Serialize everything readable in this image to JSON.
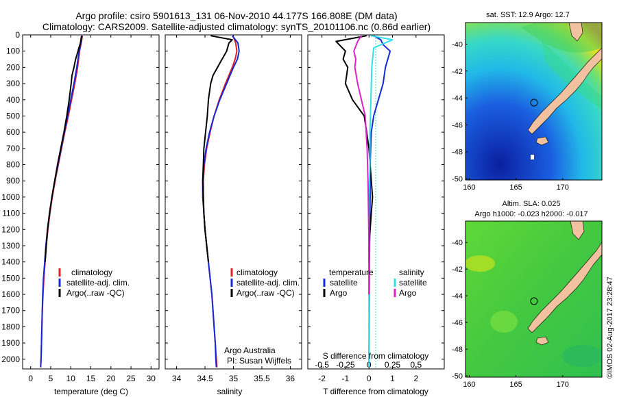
{
  "header": {
    "title_line1": "Argo profile: csiro 5901613_131 06-Nov-2010 44.177S 166.808E (DM data)",
    "title_line2": "Climatology: CARS2009. Satellite-adjusted climatology: synTS_20101106.nc (0.86d earlier)"
  },
  "credits": {
    "org": "Argo Australia",
    "pi": "PI: Susan Wijffels",
    "imos": "©IMOS 02-Aug-2017 23:28:47"
  },
  "colors": {
    "climatology": "#e02020",
    "satellite": "#1428d8",
    "argo": "#000000",
    "satellite_salinity": "#30e0e8",
    "argo_salinity": "#e020c8",
    "land": "#f2c2a0"
  },
  "chart_data": [
    {
      "type": "line",
      "xlabel": "temperature (deg C)",
      "ylabel": "",
      "xlim": [
        -2,
        32
      ],
      "ylim": [
        2060,
        0
      ],
      "xticks": [
        0,
        5,
        10,
        15,
        20,
        25,
        30
      ],
      "yticks": [
        0,
        100,
        200,
        300,
        400,
        500,
        600,
        700,
        800,
        900,
        1000,
        1100,
        1200,
        1300,
        1400,
        1500,
        1600,
        1700,
        1800,
        1900,
        2000
      ],
      "legend": [
        "climatology",
        "satellite-adj. clim.",
        "Argo(..raw -QC)"
      ],
      "legend_placement": "lower-middle",
      "series": [
        {
          "name": "climatology",
          "depth": [
            5,
            50,
            100,
            200,
            300,
            400,
            500,
            600,
            700,
            800,
            900,
            1000,
            1100,
            1200,
            1300,
            1400,
            1500,
            1600,
            1700,
            1800,
            1900,
            2000,
            2050
          ],
          "values": [
            12.9,
            12.6,
            12.2,
            11.7,
            11.0,
            10.2,
            9.4,
            8.5,
            7.7,
            6.9,
            6.1,
            5.4,
            4.8,
            4.3,
            3.9,
            3.6,
            3.3,
            3.1,
            2.9,
            2.8,
            2.7,
            2.6,
            2.5
          ]
        },
        {
          "name": "satellite-adj. clim.",
          "depth": [
            5,
            50,
            100,
            200,
            300,
            400,
            500,
            600,
            700,
            800,
            900,
            1000,
            1100,
            1200,
            1300,
            1400,
            1500,
            1600,
            1700,
            1800,
            1900,
            2000,
            2050
          ],
          "values": [
            12.8,
            12.5,
            12.1,
            11.5,
            10.8,
            10.0,
            9.2,
            8.4,
            7.6,
            6.8,
            6.0,
            5.3,
            4.7,
            4.2,
            3.8,
            3.5,
            3.2,
            3.0,
            2.9,
            2.8,
            2.7,
            2.6,
            2.5
          ]
        },
        {
          "name": "Argo(..raw -QC)",
          "depth": [
            5,
            50,
            100,
            150,
            200,
            250,
            300,
            400,
            500,
            600,
            700,
            800,
            900,
            1000,
            1100,
            1200,
            1300,
            1400
          ],
          "values": [
            12.7,
            12.4,
            11.8,
            11.2,
            10.8,
            10.3,
            10.1,
            9.6,
            9.0,
            8.3,
            7.5,
            6.7,
            6.0,
            5.3,
            4.7,
            4.2,
            3.9,
            3.6
          ]
        }
      ]
    },
    {
      "type": "line",
      "xlabel": "salinity",
      "ylabel": "",
      "xlim": [
        33.8,
        36.2
      ],
      "ylim": [
        2060,
        0
      ],
      "xticks": [
        34,
        34.5,
        35,
        35.5,
        36
      ],
      "xticklabels": [
        "34",
        "34.5",
        "35",
        "35.5",
        "36"
      ],
      "legend": [
        "climatology",
        "satellite-adj. clim.",
        "Argo(..raw -QC)"
      ],
      "legend_placement": "lower-middle",
      "series": [
        {
          "name": "climatology",
          "depth": [
            5,
            50,
            100,
            150,
            200,
            300,
            400,
            500,
            600,
            700,
            800,
            900,
            1000,
            1100,
            1200,
            1300,
            1400,
            1500,
            1600,
            1700,
            1800,
            1900,
            2000,
            2050
          ],
          "values": [
            34.99,
            35.04,
            35.06,
            35.03,
            34.98,
            34.86,
            34.75,
            34.66,
            34.59,
            34.53,
            34.49,
            34.47,
            34.47,
            34.48,
            34.5,
            34.53,
            34.56,
            34.59,
            34.62,
            34.64,
            34.66,
            34.68,
            34.7,
            34.71
          ]
        },
        {
          "name": "satellite-adj. clim.",
          "depth": [
            5,
            50,
            100,
            150,
            200,
            300,
            400,
            500,
            600,
            700,
            800,
            900,
            1000,
            1100,
            1200,
            1300,
            1400,
            1500,
            1600,
            1700,
            1800,
            1900,
            2000,
            2050
          ],
          "values": [
            34.98,
            35.08,
            35.1,
            35.07,
            35.0,
            34.88,
            34.76,
            34.66,
            34.58,
            34.52,
            34.48,
            34.46,
            34.46,
            34.48,
            34.5,
            34.53,
            34.56,
            34.59,
            34.62,
            34.64,
            34.66,
            34.68,
            34.69,
            34.7
          ]
        },
        {
          "name": "Argo(..raw -QC)",
          "depth": [
            5,
            30,
            50,
            100,
            150,
            200,
            250,
            300,
            400,
            500,
            600,
            700,
            800,
            900,
            1000,
            1100,
            1200,
            1300,
            1400
          ],
          "values": [
            34.6,
            34.98,
            34.92,
            34.88,
            34.8,
            34.72,
            34.64,
            34.6,
            34.56,
            34.54,
            34.51,
            34.48,
            34.47,
            34.46,
            34.47,
            34.48,
            34.5,
            34.53,
            34.56
          ]
        }
      ]
    },
    {
      "type": "line",
      "xlabel": "T difference from climatology",
      "x2label": "S difference from climatology",
      "ylabel": "",
      "xlim": [
        -2.6,
        3.2
      ],
      "ylim": [
        2060,
        0
      ],
      "xticks": [
        -2,
        -1,
        0,
        1,
        2
      ],
      "x2ticks": [
        -0.5,
        -0.25,
        0,
        0.25,
        0.5
      ],
      "x2ticklabels": [
        "-0.5",
        "-0.25",
        "0",
        "0.25",
        "0.5"
      ],
      "legend_temperature_title": "temperature",
      "legend_salinity_title": "salinity",
      "legend_labels": [
        "satellite",
        "Argo"
      ],
      "legend_placement": "lower-middle",
      "series": [
        {
          "name": "temperature satellite",
          "depth": [
            5,
            30,
            60,
            100,
            200,
            300,
            400,
            500,
            600,
            800,
            1000,
            1400,
            2050
          ],
          "values": [
            0.2,
            0.5,
            0.6,
            0.9,
            0.7,
            0.6,
            0.4,
            0.2,
            0.1,
            0.05,
            0.05,
            0.02,
            0.0
          ]
        },
        {
          "name": "temperature Argo",
          "depth": [
            5,
            40,
            70,
            100,
            150,
            200,
            300,
            400,
            500,
            600,
            700,
            800,
            900,
            1000,
            1100,
            1200,
            1300,
            1400
          ],
          "values": [
            -0.1,
            -1.4,
            -1.2,
            -1.0,
            -1.1,
            -0.9,
            -1.0,
            -0.7,
            -0.2,
            -0.1,
            0.0,
            0.05,
            0.1,
            0.15,
            0.1,
            0.05,
            0.0,
            0.0
          ]
        },
        {
          "name": "salinity satellite",
          "depth": [
            5,
            30,
            80,
            200,
            400,
            600,
            800,
            1000,
            1400,
            2050
          ],
          "values": [
            0.02,
            0.25,
            0.05,
            0.03,
            0.02,
            0.01,
            0.01,
            0.0,
            0.0,
            0.0
          ]
        },
        {
          "name": "salinity Argo",
          "depth": [
            5,
            40,
            100,
            150,
            200,
            300,
            400,
            500,
            700,
            900,
            1100,
            1300,
            1500,
            1600
          ],
          "values": [
            -0.08,
            -0.12,
            -0.16,
            -0.14,
            -0.15,
            -0.12,
            -0.08,
            -0.04,
            -0.02,
            -0.01,
            -0.005,
            0.0,
            0.0,
            0.0
          ]
        }
      ]
    },
    {
      "type": "heatmap",
      "title": "sat. SST: 12.9 Argo: 12.7",
      "xticks": [
        160,
        165,
        170
      ],
      "yticks": [
        -40,
        -42,
        -44,
        -46,
        -48,
        -50
      ],
      "xlim": [
        159.6,
        174.2
      ],
      "ylim": [
        -50.1,
        -38.4
      ]
    },
    {
      "type": "heatmap",
      "title_line1": "Altim. SLA: 0.025",
      "title_line2": "Argo h1000: -0.023 h2000: -0.017",
      "xticks": [
        160,
        165,
        170
      ],
      "yticks": [
        -40,
        -42,
        -44,
        -46,
        -48,
        -50
      ],
      "xlim": [
        159.6,
        174.2
      ],
      "ylim": [
        -50.1,
        -38.4
      ]
    }
  ]
}
